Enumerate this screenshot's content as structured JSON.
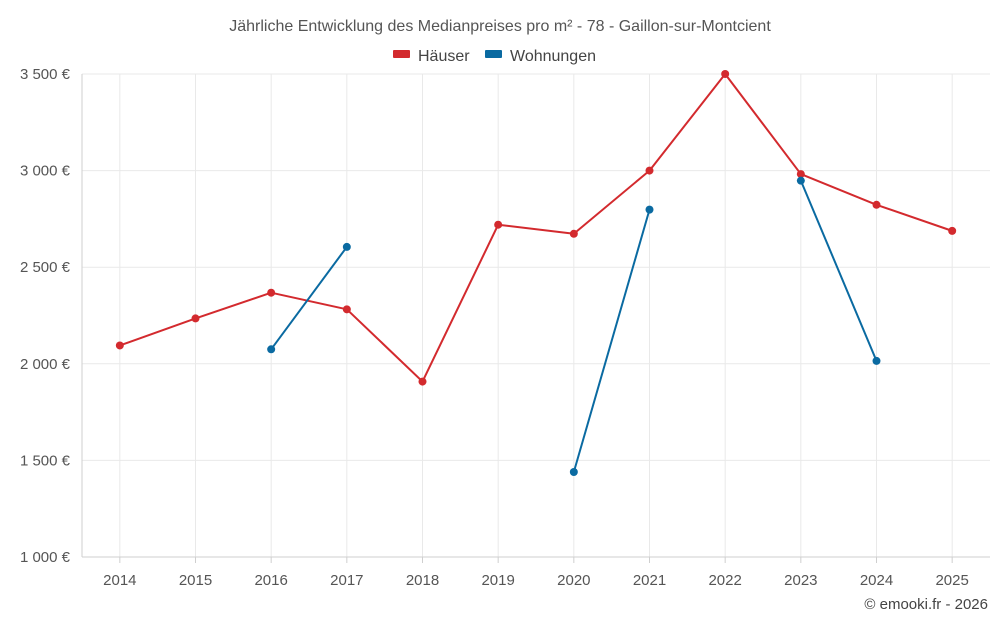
{
  "chart_data": {
    "type": "line",
    "title": "Jährliche Entwicklung des Medianpreises pro m² - 78 - Gaillon-sur-Montcient",
    "categories": [
      "2014",
      "2015",
      "2016",
      "2017",
      "2018",
      "2019",
      "2020",
      "2021",
      "2022",
      "2023",
      "2024",
      "2025"
    ],
    "ylim": [
      1000,
      3500
    ],
    "yticks": [
      1000,
      1500,
      2000,
      2500,
      3000,
      3500
    ],
    "ytick_labels": [
      "1 000 €",
      "1 500 €",
      "2 000 €",
      "2 500 €",
      "3 000 €",
      "3 500 €"
    ],
    "legend_position": "top-center",
    "grid": true,
    "series": [
      {
        "name": "Häuser",
        "color": "#d32a2e",
        "values": [
          2095,
          2235,
          2368,
          2282,
          1908,
          2720,
          2673,
          3000,
          3500,
          2982,
          2823,
          2688
        ]
      },
      {
        "name": "Wohnungen",
        "color": "#0a6aa1",
        "values": [
          null,
          null,
          2075,
          2605,
          null,
          null,
          1440,
          2798,
          null,
          2948,
          2015,
          null
        ]
      }
    ]
  },
  "credit": "© emooki.fr - 2026"
}
